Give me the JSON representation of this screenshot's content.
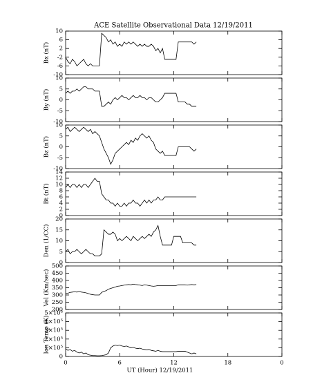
{
  "chart_data": [
    {
      "type": "line",
      "title": "ACE Satellite Observational Data   12/19/2011",
      "ylabel": "Bx (nT)",
      "xlim": [
        0,
        24
      ],
      "ylim": [
        -10,
        10
      ],
      "yticks": [
        -10,
        -6,
        -2,
        2,
        6,
        10
      ],
      "x": [
        0,
        0.25,
        0.5,
        0.75,
        1,
        1.25,
        1.5,
        1.75,
        2,
        2.25,
        2.5,
        2.75,
        3,
        3.25,
        3.5,
        3.75,
        4,
        4.25,
        4.5,
        4.75,
        5,
        5.25,
        5.5,
        5.75,
        6,
        6.25,
        6.5,
        6.75,
        7,
        7.25,
        7.5,
        7.75,
        8,
        8.25,
        8.5,
        8.75,
        9,
        9.25,
        9.5,
        9.75,
        10,
        10.25,
        10.5,
        10.75,
        11,
        11.25,
        11.5,
        11.75,
        12,
        12.25,
        12.5,
        12.75,
        13,
        13.25,
        13.5,
        13.75,
        14,
        14.25,
        14.5
      ],
      "values": [
        -2,
        -4,
        -5,
        -3,
        -4,
        -6,
        -5,
        -4,
        -3,
        -5,
        -6,
        -5,
        -6,
        -6,
        -6,
        -6,
        9,
        8,
        7,
        5,
        6,
        4,
        5,
        3,
        4,
        3,
        5,
        4,
        5,
        4,
        5,
        4,
        3,
        4,
        3,
        4,
        3,
        3,
        4,
        3,
        1,
        2,
        0,
        2,
        -3,
        -3,
        -3,
        -3,
        -3,
        -3,
        5,
        5,
        5,
        5,
        5,
        5,
        5,
        4,
        5
      ]
    },
    {
      "type": "line",
      "ylabel": "By (nT)",
      "xlim": [
        0,
        24
      ],
      "ylim": [
        -10,
        10
      ],
      "yticks": [
        -10,
        -5,
        0,
        5,
        10
      ],
      "x": [
        0,
        0.25,
        0.5,
        0.75,
        1,
        1.25,
        1.5,
        1.75,
        2,
        2.25,
        2.5,
        2.75,
        3,
        3.25,
        3.5,
        3.75,
        4,
        4.25,
        4.5,
        4.75,
        5,
        5.25,
        5.5,
        5.75,
        6,
        6.25,
        6.5,
        6.75,
        7,
        7.25,
        7.5,
        7.75,
        8,
        8.25,
        8.5,
        8.75,
        9,
        9.25,
        9.5,
        9.75,
        10,
        10.25,
        10.5,
        10.75,
        11,
        11.25,
        11.5,
        11.75,
        12,
        12.25,
        12.5,
        12.75,
        13,
        13.25,
        13.5,
        13.75,
        14,
        14.25,
        14.5
      ],
      "values": [
        3,
        4,
        3,
        4,
        4,
        5,
        4,
        5,
        6,
        6,
        5,
        5,
        5,
        4,
        4,
        4,
        -3,
        -3,
        -2,
        -1,
        -2,
        0,
        1,
        0,
        1,
        2,
        1,
        1,
        0,
        1,
        2,
        1,
        1,
        2,
        1,
        1,
        0,
        1,
        1,
        0,
        -1,
        -1,
        0,
        1,
        3,
        3,
        3,
        3,
        3,
        3,
        -1,
        -1,
        -1,
        -1,
        -2,
        -2,
        -3,
        -3,
        -3
      ]
    },
    {
      "type": "line",
      "ylabel": "Bz (nT)",
      "xlim": [
        0,
        24
      ],
      "ylim": [
        -10,
        10
      ],
      "yticks": [
        -10,
        -5,
        0,
        5,
        10
      ],
      "x": [
        0,
        0.25,
        0.5,
        0.75,
        1,
        1.25,
        1.5,
        1.75,
        2,
        2.25,
        2.5,
        2.75,
        3,
        3.25,
        3.5,
        3.75,
        4,
        4.25,
        4.5,
        4.75,
        5,
        5.25,
        5.5,
        5.75,
        6,
        6.25,
        6.5,
        6.75,
        7,
        7.25,
        7.5,
        7.75,
        8,
        8.25,
        8.5,
        8.75,
        9,
        9.25,
        9.5,
        9.75,
        10,
        10.25,
        10.5,
        10.75,
        11,
        11.25,
        11.5,
        11.75,
        12,
        12.25,
        12.5,
        12.75,
        13,
        13.25,
        13.5,
        13.75,
        14,
        14.25,
        14.5
      ],
      "values": [
        8,
        9,
        7,
        8,
        9,
        8,
        7,
        8,
        9,
        8,
        7,
        8,
        6,
        7,
        6,
        5,
        2,
        -1,
        -3,
        -5,
        -8,
        -6,
        -3,
        -2,
        -1,
        0,
        1,
        2,
        1,
        3,
        2,
        4,
        3,
        5,
        6,
        5,
        4,
        5,
        3,
        2,
        -1,
        -2,
        -3,
        -2,
        -4,
        -4,
        -4,
        -4,
        -4,
        -4,
        0,
        0,
        0,
        0,
        0,
        0,
        -1,
        -2,
        -1
      ]
    },
    {
      "type": "line",
      "ylabel": "Bt (nT)",
      "xlim": [
        0,
        24
      ],
      "ylim": [
        0,
        14
      ],
      "yticks": [
        0,
        2,
        4,
        6,
        8,
        10,
        12,
        14
      ],
      "x": [
        0,
        0.25,
        0.5,
        0.75,
        1,
        1.25,
        1.5,
        1.75,
        2,
        2.25,
        2.5,
        2.75,
        3,
        3.25,
        3.5,
        3.75,
        4,
        4.25,
        4.5,
        4.75,
        5,
        5.25,
        5.5,
        5.75,
        6,
        6.25,
        6.5,
        6.75,
        7,
        7.25,
        7.5,
        7.75,
        8,
        8.25,
        8.5,
        8.75,
        9,
        9.25,
        9.5,
        9.75,
        10,
        10.25,
        10.5,
        10.75,
        11,
        11.25,
        11.5,
        11.75,
        12,
        12.25,
        12.5,
        12.75,
        13,
        13.25,
        13.5,
        13.75,
        14,
        14.25,
        14.5
      ],
      "values": [
        9,
        10,
        9,
        10,
        10,
        9,
        10,
        9,
        10,
        10,
        9,
        10,
        11,
        12,
        11,
        11,
        7,
        6,
        5,
        5,
        4,
        4,
        3,
        4,
        3,
        3,
        4,
        3,
        4,
        4,
        5,
        4,
        4,
        3,
        4,
        5,
        4,
        5,
        4,
        5,
        5,
        6,
        5,
        5,
        6,
        6,
        6,
        6,
        6,
        6,
        6,
        6,
        6,
        6,
        6,
        6,
        6,
        6,
        6
      ]
    },
    {
      "type": "line",
      "ylabel": "Den (1/CC)",
      "xlim": [
        0,
        24
      ],
      "ylim": [
        0,
        20
      ],
      "yticks": [
        0,
        5,
        10,
        15,
        20
      ],
      "x": [
        0,
        0.25,
        0.5,
        0.75,
        1,
        1.25,
        1.5,
        1.75,
        2,
        2.25,
        2.5,
        2.75,
        3,
        3.25,
        3.5,
        3.75,
        4,
        4.25,
        4.5,
        4.75,
        5,
        5.25,
        5.5,
        5.75,
        6,
        6.25,
        6.5,
        6.75,
        7,
        7.25,
        7.5,
        7.75,
        8,
        8.25,
        8.5,
        8.75,
        9,
        9.25,
        9.5,
        9.75,
        10,
        10.25,
        10.5,
        10.75,
        11,
        11.25,
        11.5,
        11.75,
        12,
        12.25,
        12.5,
        12.75,
        13,
        13.25,
        13.5,
        13.75,
        14,
        14.25,
        14.5
      ],
      "values": [
        5,
        6,
        4,
        5,
        5,
        6,
        5,
        4,
        5,
        6,
        5,
        4,
        4,
        3,
        3,
        3,
        4,
        15,
        14,
        13,
        13,
        14,
        13,
        10,
        11,
        10,
        11,
        12,
        11,
        10,
        12,
        11,
        10,
        11,
        12,
        11,
        12,
        13,
        12,
        14,
        15,
        17,
        12,
        8,
        8,
        8,
        8,
        8,
        12,
        12,
        12,
        12,
        9,
        9,
        9,
        9,
        9,
        8,
        8
      ]
    },
    {
      "type": "line",
      "ylabel": "Vel (Km/sec)",
      "xlim": [
        0,
        24
      ],
      "ylim": [
        200,
        500
      ],
      "yticks": [
        200,
        250,
        300,
        350,
        400,
        450,
        500
      ],
      "x": [
        0,
        0.25,
        0.5,
        0.75,
        1,
        1.25,
        1.5,
        1.75,
        2,
        2.25,
        2.5,
        2.75,
        3,
        3.25,
        3.5,
        3.75,
        4,
        4.25,
        4.5,
        4.75,
        5,
        5.25,
        5.5,
        5.75,
        6,
        6.25,
        6.5,
        6.75,
        7,
        7.25,
        7.5,
        7.75,
        8,
        8.25,
        8.5,
        8.75,
        9,
        9.25,
        9.5,
        9.75,
        10,
        10.25,
        10.5,
        10.75,
        11,
        11.25,
        11.5,
        11.75,
        12,
        12.25,
        12.5,
        12.75,
        13,
        13.25,
        13.5,
        13.75,
        14,
        14.25,
        14.5
      ],
      "values": [
        310,
        312,
        318,
        320,
        322,
        320,
        325,
        320,
        318,
        315,
        310,
        305,
        302,
        300,
        300,
        300,
        318,
        325,
        330,
        340,
        345,
        350,
        355,
        360,
        362,
        365,
        368,
        370,
        372,
        370,
        375,
        372,
        370,
        368,
        365,
        370,
        368,
        365,
        362,
        360,
        362,
        365,
        365,
        365,
        365,
        365,
        365,
        365,
        365,
        365,
        370,
        370,
        370,
        370,
        368,
        370,
        372,
        370,
        372
      ]
    },
    {
      "type": "line",
      "ylabel": "Ion Temp (K)",
      "xlabel": "UT (Hour)   12/19/2011",
      "xlim": [
        0,
        24
      ],
      "xticks": [
        0,
        6,
        12,
        18,
        {
          "value": 24,
          "label": "0"
        }
      ],
      "ylim": [
        0,
        500000
      ],
      "yticks": [
        0,
        {
          "value": 100000,
          "label": "1×10⁵"
        },
        {
          "value": 200000,
          "label": "2×10⁵"
        },
        {
          "value": 300000,
          "label": "3×10⁵"
        },
        {
          "value": 400000,
          "label": "4×10⁵"
        },
        {
          "value": 500000,
          "label": "5×10⁵"
        }
      ],
      "x": [
        0,
        0.25,
        0.5,
        0.75,
        1,
        1.25,
        1.5,
        1.75,
        2,
        2.25,
        2.5,
        2.75,
        3,
        3.25,
        3.5,
        3.75,
        4,
        4.25,
        4.5,
        4.75,
        5,
        5.25,
        5.5,
        5.75,
        6,
        6.25,
        6.5,
        6.75,
        7,
        7.25,
        7.5,
        7.75,
        8,
        8.25,
        8.5,
        8.75,
        9,
        9.25,
        9.5,
        9.75,
        10,
        10.25,
        10.5,
        10.75,
        11,
        11.25,
        11.5,
        11.75,
        12,
        12.25,
        12.5,
        12.75,
        13,
        13.25,
        13.5,
        13.75,
        14,
        14.25,
        14.5
      ],
      "values": [
        90000,
        70000,
        80000,
        60000,
        70000,
        50000,
        40000,
        50000,
        30000,
        40000,
        20000,
        15000,
        10000,
        10000,
        8000,
        8000,
        10000,
        15000,
        20000,
        40000,
        100000,
        120000,
        130000,
        125000,
        130000,
        120000,
        115000,
        120000,
        110000,
        100000,
        105000,
        95000,
        90000,
        95000,
        85000,
        80000,
        75000,
        80000,
        70000,
        65000,
        60000,
        70000,
        60000,
        55000,
        55000,
        55000,
        55000,
        55000,
        55000,
        55000,
        60000,
        60000,
        60000,
        60000,
        50000,
        40000,
        30000,
        40000,
        30000
      ]
    }
  ]
}
